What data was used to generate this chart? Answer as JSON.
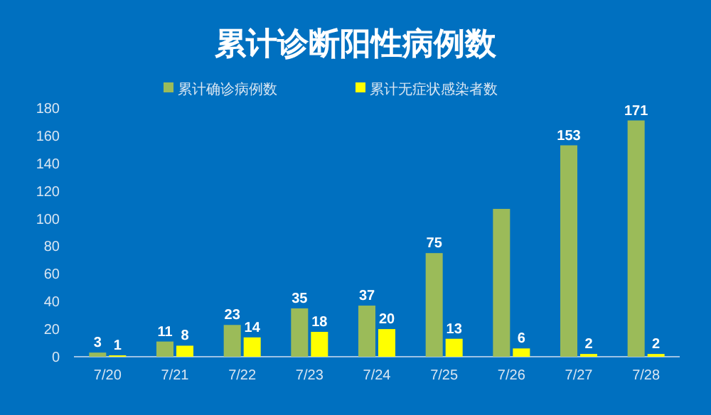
{
  "chart_data": {
    "type": "bar",
    "title": "累计诊断阳性病例数",
    "categories": [
      "7/20",
      "7/21",
      "7/22",
      "7/23",
      "7/24",
      "7/25",
      "7/26",
      "7/27",
      "7/28"
    ],
    "series": [
      {
        "name": "累计确诊病例数",
        "color": "#9bbb59",
        "values": [
          3,
          11,
          23,
          35,
          37,
          75,
          107,
          153,
          171
        ],
        "value_labels": [
          "3",
          "11",
          "23",
          "35",
          "37",
          "75",
          null,
          "153",
          "171"
        ]
      },
      {
        "name": "累计无症状感染者数",
        "color": "#ffff00",
        "values": [
          1,
          8,
          14,
          18,
          20,
          13,
          6,
          2,
          2
        ],
        "value_labels": [
          "1",
          "8",
          "14",
          "18",
          "20",
          "13",
          "6",
          "2",
          "2"
        ]
      }
    ],
    "ylim": [
      0,
      180
    ],
    "yticks": [
      0,
      20,
      40,
      60,
      80,
      100,
      120,
      140,
      160,
      180
    ],
    "grid": false,
    "legend": "top"
  }
}
